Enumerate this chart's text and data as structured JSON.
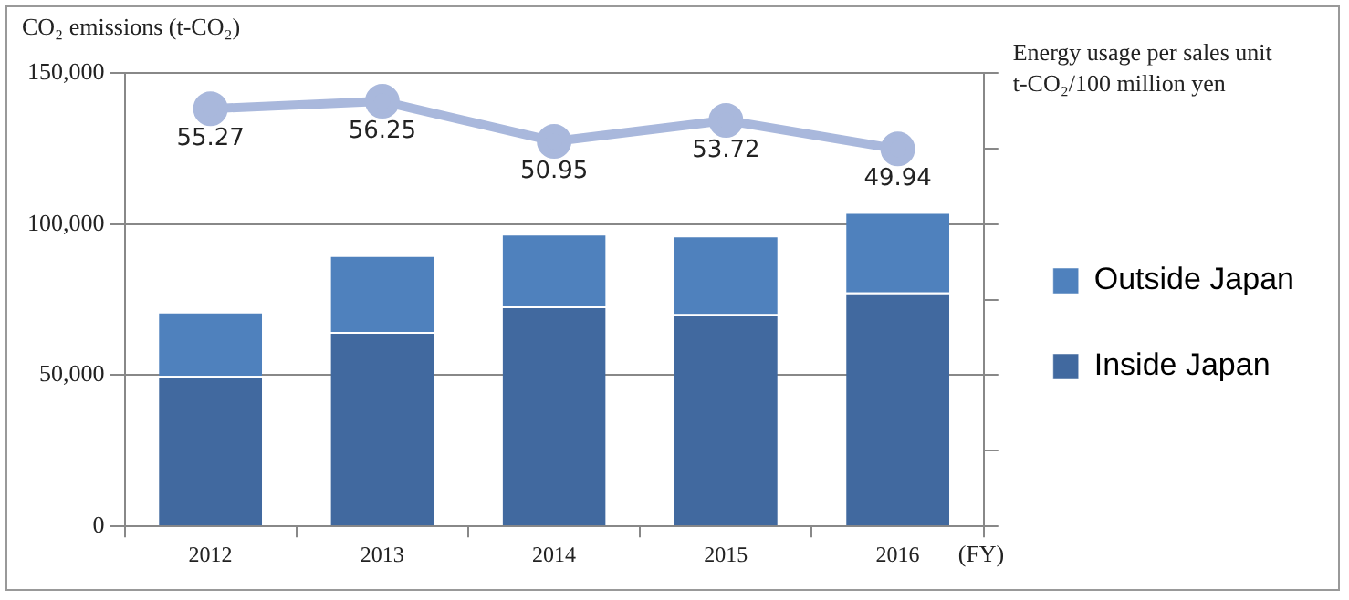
{
  "chart_data": {
    "type": "bar",
    "stacked": true,
    "ylabel": "CO₂ emissions (t-CO₂)",
    "y2label": "Energy usage per sales unit\nt-CO₂/100 million yen",
    "xlabel": "(FY)",
    "categories": [
      "2012",
      "2013",
      "2014",
      "2015",
      "2016"
    ],
    "series": [
      {
        "name": "Inside Japan",
        "color": "#41699f",
        "values": [
          49800,
          64300,
          72800,
          70200,
          77400
        ]
      },
      {
        "name": "Outside Japan",
        "color": "#4f81bd",
        "values": [
          21200,
          25400,
          24000,
          26000,
          26600
        ]
      },
      {
        "type": "line",
        "axis": "y2",
        "color": "#a9b8dc",
        "marker": "circle",
        "data_labels": true,
        "values": [
          55.27,
          56.25,
          50.95,
          53.72,
          49.94
        ]
      }
    ],
    "ylim": [
      0,
      150000
    ],
    "yticks": [
      {
        "value": 0,
        "label": "0"
      },
      {
        "value": 50000,
        "label": "50,000"
      },
      {
        "value": 100000,
        "label": "100,000"
      },
      {
        "value": 150000,
        "label": "150,000"
      }
    ],
    "y2lim": [
      0,
      60
    ],
    "y2ticks": [
      {
        "value": 0,
        "label": null
      },
      {
        "value": 10,
        "label": null
      },
      {
        "value": 20,
        "label": null
      },
      {
        "value": 30,
        "label": null
      },
      {
        "value": 40,
        "label": null
      },
      {
        "value": 50,
        "label": null
      },
      {
        "value": 60,
        "label": null
      }
    ],
    "grid": "y",
    "legend": "right"
  }
}
